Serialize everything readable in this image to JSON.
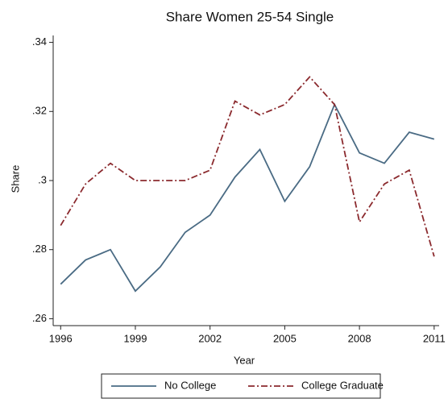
{
  "chart_data": {
    "type": "line",
    "title": "Share Women 25-54 Single",
    "x_label": "Year",
    "y_label": "Share",
    "x": [
      1996,
      1997,
      1998,
      1999,
      2000,
      2001,
      2002,
      2003,
      2004,
      2005,
      2006,
      2007,
      2008,
      2009,
      2010,
      2011
    ],
    "series": [
      {
        "name": "No College",
        "color": "#4a6b84",
        "style": "solid",
        "values": [
          0.27,
          0.277,
          0.28,
          0.268,
          0.275,
          0.285,
          0.29,
          0.301,
          0.309,
          0.294,
          0.304,
          0.322,
          0.308,
          0.305,
          0.314,
          0.312
        ]
      },
      {
        "name": "College Graduate",
        "color": "#8b2a2e",
        "style": "dashdot",
        "values": [
          0.287,
          0.299,
          0.305,
          0.3,
          0.3,
          0.3,
          0.303,
          0.323,
          0.319,
          0.322,
          0.33,
          0.322,
          0.288,
          0.299,
          0.303,
          0.278
        ]
      }
    ],
    "xlim": [
      1995.7,
      2011.2
    ],
    "xticks": [
      1996,
      1999,
      2002,
      2005,
      2008,
      2011
    ],
    "ylim": [
      0.258,
      0.342
    ],
    "yticks": [
      {
        "value": 0.26,
        "label": ".26"
      },
      {
        "value": 0.28,
        "label": ".28"
      },
      {
        "value": 0.3,
        "label": ".3"
      },
      {
        "value": 0.32,
        "label": ".32"
      },
      {
        "value": 0.34,
        "label": ".34"
      }
    ],
    "grid": false,
    "legend": "bottom"
  }
}
